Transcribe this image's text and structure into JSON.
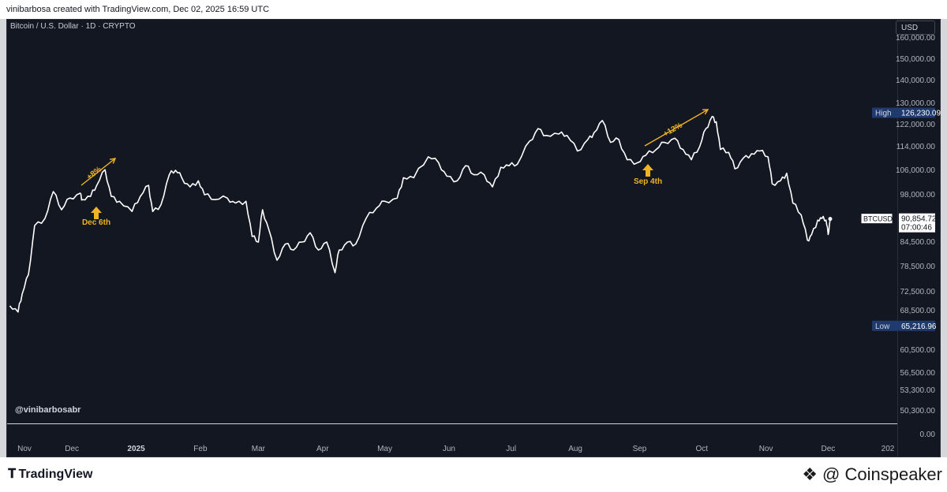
{
  "header": {
    "credit": "vinibarbosa created with TradingView.com, Dec 02, 2025 16:59 UTC"
  },
  "chart_data": {
    "type": "line",
    "symbol_line": "Bitcoin / U.S. Dollar · 1D · CRYPTO",
    "currency_button": "USD",
    "watermark": "@vinibarbosabr",
    "title": "",
    "xlabel": "",
    "ylabel": "",
    "log_scale": true,
    "grid": false,
    "y_ticks": [
      "160,000.00",
      "150,000.00",
      "140,000.00",
      "130,000.00",
      "122,000.00",
      "114,000.00",
      "106,000.00",
      "98,000.00",
      "84,500.00",
      "78,500.00",
      "72,500.00",
      "68,500.00",
      "60,500.00",
      "56,500.00",
      "53,300.00",
      "50,300.00",
      "0.00"
    ],
    "x_ticks": [
      "Nov",
      "Dec",
      "2025",
      "Feb",
      "Mar",
      "Apr",
      "May",
      "Jun",
      "Jul",
      "Aug",
      "Sep",
      "Oct",
      "Nov",
      "Dec",
      "202"
    ],
    "x_start": "2024-11-01",
    "x_end": "2025-12-02",
    "series": [
      {
        "name": "BTCUSD",
        "color": "#ffffff",
        "points": [
          [
            "2024-11-01",
            69500
          ],
          [
            "2024-11-05",
            68200
          ],
          [
            "2024-11-07",
            72000
          ],
          [
            "2024-11-10",
            76500
          ],
          [
            "2024-11-13",
            89000
          ],
          [
            "2024-11-18",
            91000
          ],
          [
            "2024-11-22",
            99000
          ],
          [
            "2024-11-26",
            93500
          ],
          [
            "2024-11-30",
            97000
          ],
          [
            "2024-12-05",
            98500
          ],
          [
            "2024-12-06",
            96500
          ],
          [
            "2024-12-10",
            97500
          ],
          [
            "2024-12-13",
            101000
          ],
          [
            "2024-12-17",
            106200
          ],
          [
            "2024-12-20",
            97500
          ],
          [
            "2024-12-24",
            96000
          ],
          [
            "2024-12-30",
            93000
          ],
          [
            "2025-01-03",
            97500
          ],
          [
            "2025-01-07",
            101000
          ],
          [
            "2025-01-09",
            93000
          ],
          [
            "2025-01-13",
            95000
          ],
          [
            "2025-01-17",
            104500
          ],
          [
            "2025-01-20",
            106000
          ],
          [
            "2025-01-23",
            103500
          ],
          [
            "2025-01-27",
            100500
          ],
          [
            "2025-01-31",
            102500
          ],
          [
            "2025-02-03",
            98000
          ],
          [
            "2025-02-08",
            96500
          ],
          [
            "2025-02-14",
            97000
          ],
          [
            "2025-02-18",
            95500
          ],
          [
            "2025-02-23",
            96000
          ],
          [
            "2025-02-26",
            86000
          ],
          [
            "2025-03-01",
            84500
          ],
          [
            "2025-03-03",
            93500
          ],
          [
            "2025-03-06",
            88000
          ],
          [
            "2025-03-10",
            80000
          ],
          [
            "2025-03-14",
            84000
          ],
          [
            "2025-03-18",
            82500
          ],
          [
            "2025-03-22",
            84500
          ],
          [
            "2025-03-26",
            87000
          ],
          [
            "2025-03-30",
            82500
          ],
          [
            "2025-04-03",
            84500
          ],
          [
            "2025-04-07",
            77000
          ],
          [
            "2025-04-09",
            82500
          ],
          [
            "2025-04-13",
            84500
          ],
          [
            "2025-04-17",
            84000
          ],
          [
            "2025-04-22",
            91000
          ],
          [
            "2025-04-27",
            94000
          ],
          [
            "2025-05-01",
            96000
          ],
          [
            "2025-05-07",
            97000
          ],
          [
            "2025-05-10",
            103500
          ],
          [
            "2025-05-15",
            103500
          ],
          [
            "2025-05-22",
            110500
          ],
          [
            "2025-05-27",
            108500
          ],
          [
            "2025-05-31",
            104000
          ],
          [
            "2025-06-05",
            102500
          ],
          [
            "2025-06-09",
            107500
          ],
          [
            "2025-06-13",
            104500
          ],
          [
            "2025-06-18",
            104500
          ],
          [
            "2025-06-22",
            100500
          ],
          [
            "2025-06-26",
            107000
          ],
          [
            "2025-06-30",
            107500
          ],
          [
            "2025-07-04",
            108000
          ],
          [
            "2025-07-10",
            116000
          ],
          [
            "2025-07-14",
            120500
          ],
          [
            "2025-07-18",
            118000
          ],
          [
            "2025-07-24",
            118500
          ],
          [
            "2025-07-28",
            118000
          ],
          [
            "2025-08-02",
            112500
          ],
          [
            "2025-08-07",
            116500
          ],
          [
            "2025-08-10",
            119000
          ],
          [
            "2025-08-14",
            123500
          ],
          [
            "2025-08-18",
            115500
          ],
          [
            "2025-08-22",
            116500
          ],
          [
            "2025-08-26",
            109500
          ],
          [
            "2025-08-31",
            108500
          ],
          [
            "2025-09-04",
            111000
          ],
          [
            "2025-09-09",
            113000
          ],
          [
            "2025-09-13",
            115500
          ],
          [
            "2025-09-18",
            117000
          ],
          [
            "2025-09-22",
            113000
          ],
          [
            "2025-09-26",
            109500
          ],
          [
            "2025-09-30",
            114000
          ],
          [
            "2025-10-03",
            120500
          ],
          [
            "2025-10-06",
            125000
          ],
          [
            "2025-10-08",
            123000
          ],
          [
            "2025-10-10",
            113000
          ],
          [
            "2025-10-14",
            112000
          ],
          [
            "2025-10-17",
            106500
          ],
          [
            "2025-10-21",
            110000
          ],
          [
            "2025-10-25",
            111500
          ],
          [
            "2025-10-29",
            112500
          ],
          [
            "2025-11-02",
            110500
          ],
          [
            "2025-11-04",
            101500
          ],
          [
            "2025-11-08",
            102500
          ],
          [
            "2025-11-11",
            105000
          ],
          [
            "2025-11-14",
            95500
          ],
          [
            "2025-11-18",
            92000
          ],
          [
            "2025-11-21",
            85000
          ],
          [
            "2025-11-23",
            86500
          ],
          [
            "2025-11-26",
            90500
          ],
          [
            "2025-11-28",
            91000
          ],
          [
            "2025-11-30",
            90500
          ],
          [
            "2025-12-01",
            86500
          ],
          [
            "2025-12-02",
            90854
          ]
        ]
      }
    ],
    "high": {
      "label": "High",
      "value": "126,230.09"
    },
    "low": {
      "label": "Low",
      "value": "65,216.96"
    },
    "last": {
      "symbol": "BTCUSD",
      "value": "90,854.72",
      "countdown": "07:00:46"
    },
    "annotations": [
      {
        "arrow_label": "Dec 6th",
        "trend_label": "+8%",
        "date": "2024-12-06",
        "color": "#f0b323"
      },
      {
        "arrow_label": "Sep 4th",
        "trend_label": "+12%",
        "date": "2025-09-04",
        "color": "#f0b323"
      }
    ]
  },
  "footer": {
    "tv_brand": "TradingView",
    "coinspeaker": "@ Coinspeaker"
  }
}
